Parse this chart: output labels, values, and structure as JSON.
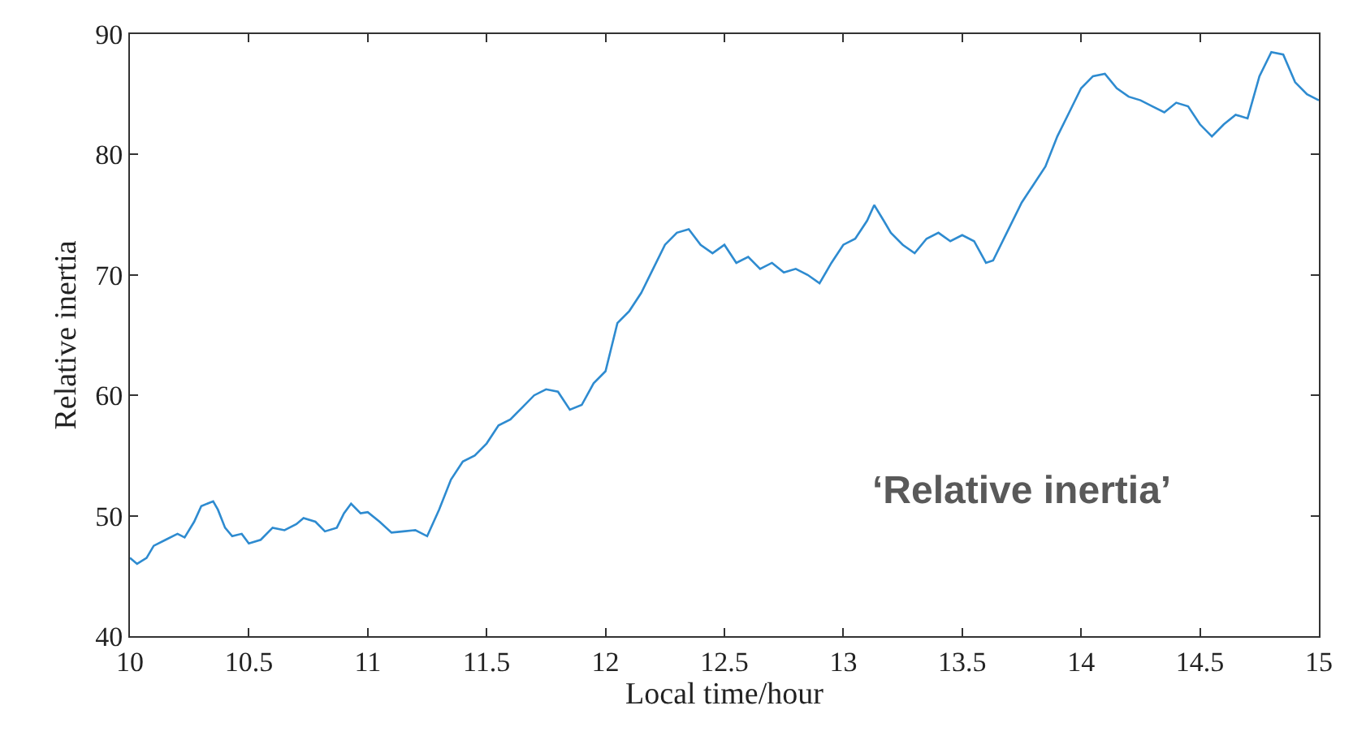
{
  "chart_data": {
    "type": "line",
    "xlabel": "Local time/hour",
    "ylabel": "Relative inertia",
    "annotations": [
      "‘Relative inertia’"
    ],
    "xlim": [
      10,
      15
    ],
    "xticks": [
      10,
      10.5,
      11,
      11.5,
      12,
      12.5,
      13,
      13.5,
      14,
      14.5,
      15
    ],
    "ylim": [
      40,
      90
    ],
    "yticks": [
      40,
      50,
      60,
      70,
      80,
      90
    ],
    "marker": "none",
    "line_style": "solid",
    "series": [
      {
        "color": "#2e8bd0",
        "x": [
          10.0,
          10.03,
          10.07,
          10.1,
          10.15,
          10.2,
          10.23,
          10.27,
          10.3,
          10.35,
          10.37,
          10.4,
          10.43,
          10.47,
          10.5,
          10.55,
          10.6,
          10.65,
          10.7,
          10.73,
          10.78,
          10.82,
          10.87,
          10.9,
          10.93,
          10.97,
          11.0,
          11.05,
          11.1,
          11.15,
          11.2,
          11.25,
          11.3,
          11.35,
          11.4,
          11.45,
          11.5,
          11.55,
          11.6,
          11.65,
          11.7,
          11.75,
          11.8,
          11.85,
          11.9,
          11.95,
          12.0,
          12.05,
          12.1,
          12.15,
          12.2,
          12.25,
          12.3,
          12.35,
          12.4,
          12.45,
          12.5,
          12.55,
          12.6,
          12.65,
          12.7,
          12.75,
          12.8,
          12.85,
          12.9,
          12.95,
          13.0,
          13.05,
          13.1,
          13.13,
          13.17,
          13.2,
          13.25,
          13.3,
          13.35,
          13.4,
          13.45,
          13.5,
          13.55,
          13.6,
          13.63,
          13.7,
          13.75,
          13.8,
          13.85,
          13.9,
          13.95,
          14.0,
          14.05,
          14.1,
          14.15,
          14.2,
          14.25,
          14.3,
          14.35,
          14.4,
          14.45,
          14.5,
          14.55,
          14.6,
          14.65,
          14.7,
          14.75,
          14.8,
          14.85,
          14.9,
          14.95,
          15.0
        ],
        "values": [
          46.5,
          46.0,
          46.5,
          47.5,
          48.0,
          48.5,
          48.2,
          49.5,
          50.8,
          51.2,
          50.5,
          49.0,
          48.3,
          48.5,
          47.7,
          48.0,
          49.0,
          48.8,
          49.3,
          49.8,
          49.5,
          48.7,
          49.0,
          50.2,
          51.0,
          50.2,
          50.3,
          49.5,
          48.6,
          48.7,
          48.8,
          48.3,
          50.5,
          53.0,
          54.5,
          55.0,
          56.0,
          57.5,
          58.0,
          59.0,
          60.0,
          60.5,
          60.3,
          58.8,
          59.2,
          61.0,
          62.0,
          66.0,
          67.0,
          68.5,
          70.5,
          72.5,
          73.5,
          73.8,
          72.5,
          71.8,
          72.5,
          71.0,
          71.5,
          70.5,
          71.0,
          70.2,
          70.5,
          70.0,
          69.3,
          71.0,
          72.5,
          73.0,
          74.5,
          75.8,
          74.5,
          73.5,
          72.5,
          71.8,
          73.0,
          73.5,
          72.8,
          73.3,
          72.8,
          71.0,
          71.2,
          74.0,
          76.0,
          77.5,
          79.0,
          81.5,
          83.5,
          85.5,
          86.5,
          86.7,
          85.5,
          84.8,
          84.5,
          84.0,
          83.5,
          84.3,
          84.0,
          82.5,
          81.5,
          82.5,
          83.3,
          83.0,
          86.5,
          88.5,
          88.3,
          86.0,
          85.0,
          84.5
        ]
      }
    ]
  }
}
